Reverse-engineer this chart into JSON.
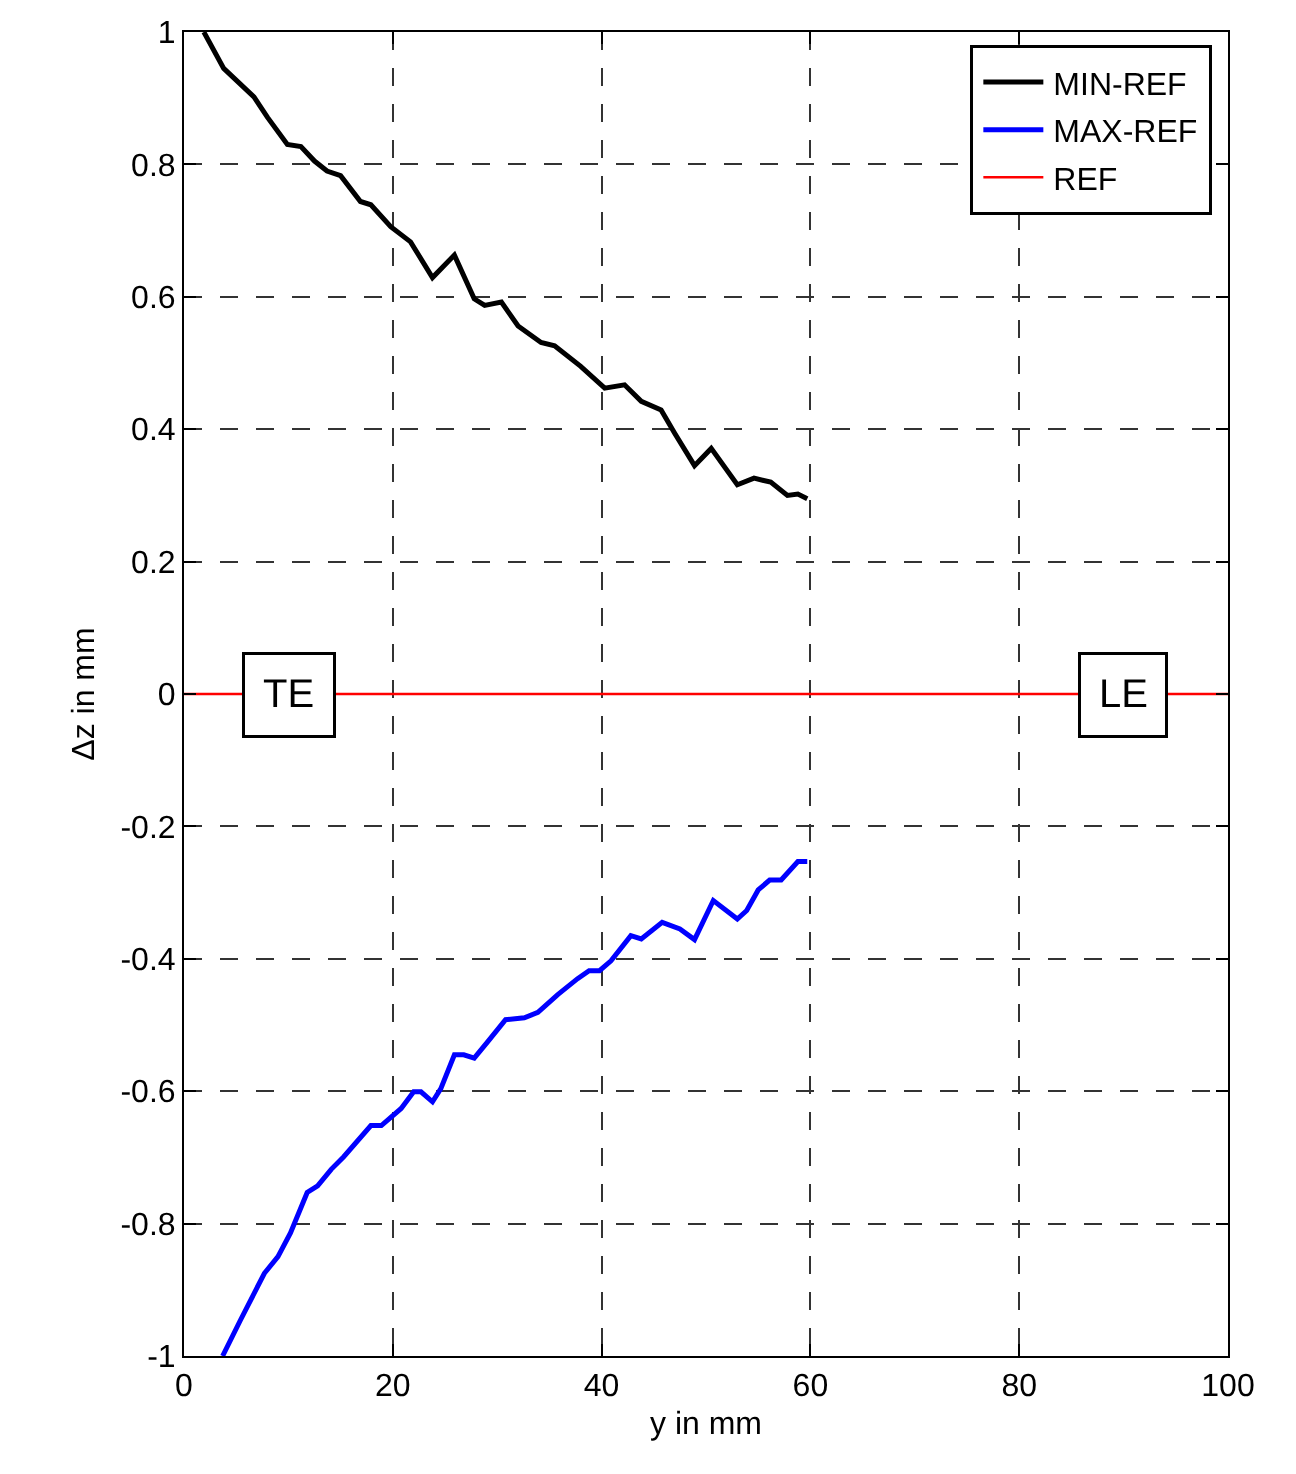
{
  "chart_data": {
    "type": "line",
    "xlabel": "y in mm",
    "ylabel": "Δz in mm",
    "xlim": [
      0,
      100
    ],
    "xticks": [
      0,
      20,
      40,
      60,
      80,
      100
    ],
    "ylim": [
      -1,
      1
    ],
    "yticks": [
      -1,
      -0.8,
      -0.6,
      -0.4,
      -0.2,
      0,
      0.2,
      0.4,
      0.6,
      0.8,
      1
    ],
    "grid": true,
    "legend": "top right",
    "line_style": "solid",
    "marker": "none",
    "series": [
      {
        "name": "MIN-REF",
        "color": "#000000",
        "x": [
          1.9,
          3.8,
          6.7,
          8.0,
          9.9,
          11.2,
          12.5,
          13.7,
          15.0,
          16.9,
          17.9,
          19.8,
          21.7,
          23.8,
          25.9,
          27.8,
          28.8,
          30.4,
          32.0,
          34.2,
          35.5,
          38.0,
          40.3,
          42.2,
          43.8,
          45.7,
          47.0,
          48.9,
          50.5,
          53.0,
          54.6,
          56.2,
          57.8,
          58.8,
          59.7
        ],
        "values": [
          1.0,
          0.945,
          0.902,
          0.871,
          0.83,
          0.827,
          0.805,
          0.79,
          0.783,
          0.744,
          0.739,
          0.706,
          0.683,
          0.629,
          0.663,
          0.597,
          0.587,
          0.592,
          0.556,
          0.531,
          0.526,
          0.495,
          0.462,
          0.467,
          0.442,
          0.429,
          0.394,
          0.345,
          0.371,
          0.316,
          0.326,
          0.32,
          0.3,
          0.302,
          0.295
        ]
      },
      {
        "name": "MAX-REF",
        "color": "#0000ff",
        "x": [
          3.7,
          5.4,
          7.7,
          9.0,
          10.2,
          11.8,
          12.8,
          14.1,
          15.3,
          17.9,
          18.9,
          20.8,
          22.0,
          22.7,
          23.8,
          24.6,
          25.9,
          26.8,
          27.8,
          29.1,
          30.8,
          32.6,
          33.9,
          35.8,
          37.7,
          38.8,
          39.8,
          40.9,
          42.8,
          43.8,
          45.8,
          47.5,
          48.9,
          50.7,
          53.0,
          53.9,
          55.0,
          56.1,
          57.2,
          58.8,
          59.7
        ],
        "values": [
          -1.0,
          -0.946,
          -0.875,
          -0.85,
          -0.814,
          -0.753,
          -0.743,
          -0.718,
          -0.699,
          -0.652,
          -0.652,
          -0.626,
          -0.601,
          -0.601,
          -0.616,
          -0.596,
          -0.545,
          -0.545,
          -0.55,
          -0.525,
          -0.492,
          -0.489,
          -0.481,
          -0.454,
          -0.43,
          -0.418,
          -0.418,
          -0.403,
          -0.365,
          -0.37,
          -0.345,
          -0.355,
          -0.371,
          -0.312,
          -0.34,
          -0.327,
          -0.296,
          -0.281,
          -0.281,
          -0.253,
          -0.253
        ]
      },
      {
        "name": "REF",
        "color": "#ff0000",
        "x": [
          0,
          100
        ],
        "values": [
          0,
          0
        ]
      }
    ],
    "annotations": [
      {
        "text": "TE",
        "x": 10,
        "y": 0
      },
      {
        "text": "LE",
        "x": 90,
        "y": 0
      }
    ]
  }
}
